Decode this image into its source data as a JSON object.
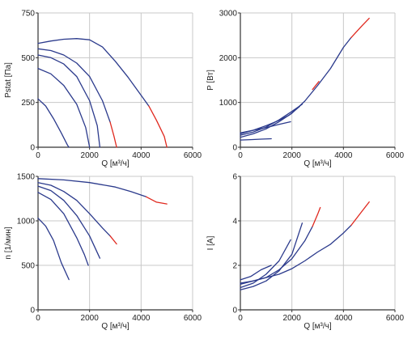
{
  "chart_data": [
    {
      "type": "line",
      "xlabel": "Q [м³/ч]",
      "ylabel": "Pstat [Па]",
      "xlim": [
        0,
        6000
      ],
      "ylim": [
        0,
        750
      ],
      "xticks": [
        "0",
        "2000",
        "4000",
        "6000"
      ],
      "yticks": [
        "0",
        "250",
        "500",
        "750"
      ],
      "grid": true,
      "series": [
        {
          "color": "#2b3a8c",
          "points": [
            [
              0,
              580
            ],
            [
              500,
              593
            ],
            [
              1000,
              603
            ],
            [
              1500,
              607
            ],
            [
              2000,
              600
            ],
            [
              2500,
              560
            ],
            [
              3000,
              480
            ],
            [
              3500,
              390
            ],
            [
              4000,
              290
            ],
            [
              4300,
              230
            ]
          ]
        },
        {
          "color": "#e0281e",
          "points": [
            [
              4300,
              230
            ],
            [
              4600,
              150
            ],
            [
              4900,
              60
            ],
            [
              5000,
              0
            ]
          ]
        },
        {
          "color": "#2b3a8c",
          "points": [
            [
              0,
              550
            ],
            [
              500,
              540
            ],
            [
              1000,
              515
            ],
            [
              1500,
              470
            ],
            [
              2000,
              395
            ],
            [
              2500,
              260
            ],
            [
              2800,
              140
            ]
          ]
        },
        {
          "color": "#e0281e",
          "points": [
            [
              2800,
              140
            ],
            [
              2950,
              60
            ],
            [
              3050,
              0
            ]
          ]
        },
        {
          "color": "#2b3a8c",
          "points": [
            [
              0,
              515
            ],
            [
              500,
              500
            ],
            [
              1000,
              465
            ],
            [
              1500,
              395
            ],
            [
              2000,
              260
            ],
            [
              2300,
              120
            ],
            [
              2400,
              0
            ]
          ]
        },
        {
          "color": "#2b3a8c",
          "points": [
            [
              0,
              440
            ],
            [
              500,
              410
            ],
            [
              1000,
              345
            ],
            [
              1500,
              240
            ],
            [
              1850,
              110
            ],
            [
              2000,
              0
            ]
          ]
        },
        {
          "color": "#2b3a8c",
          "points": [
            [
              0,
              270
            ],
            [
              300,
              230
            ],
            [
              600,
              160
            ],
            [
              900,
              80
            ],
            [
              1150,
              10
            ],
            [
              1200,
              0
            ]
          ]
        }
      ]
    },
    {
      "type": "line",
      "xlabel": "Q [м³/ч]",
      "ylabel": "P [Вт]",
      "xlim": [
        0,
        6000
      ],
      "ylim": [
        0,
        3000
      ],
      "xticks": [
        "0",
        "2000",
        "4000",
        "6000"
      ],
      "yticks": [
        "0",
        "1000",
        "2000",
        "3000"
      ],
      "grid": true,
      "series": [
        {
          "color": "#2b3a8c",
          "points": [
            [
              0,
              220
            ],
            [
              500,
              300
            ],
            [
              1000,
              410
            ],
            [
              1500,
              570
            ],
            [
              2000,
              760
            ],
            [
              2500,
              1030
            ],
            [
              3000,
              1380
            ],
            [
              3500,
              1760
            ],
            [
              4000,
              2230
            ],
            [
              4300,
              2450
            ]
          ]
        },
        {
          "color": "#e0281e",
          "points": [
            [
              4300,
              2450
            ],
            [
              4700,
              2700
            ],
            [
              5000,
              2880
            ]
          ]
        },
        {
          "color": "#e0281e",
          "points": [
            [
              2800,
              1290
            ],
            [
              3050,
              1470
            ]
          ]
        },
        {
          "color": "#2b3a8c",
          "points": [
            [
              0,
              270
            ],
            [
              500,
              340
            ],
            [
              1000,
              450
            ],
            [
              1500,
              610
            ],
            [
              2000,
              800
            ],
            [
              2400,
              960
            ]
          ]
        },
        {
          "color": "#2b3a8c",
          "points": [
            [
              0,
              300
            ],
            [
              500,
              380
            ],
            [
              1000,
              480
            ],
            [
              1500,
              600
            ],
            [
              1900,
              720
            ],
            [
              2300,
              910
            ]
          ]
        },
        {
          "color": "#2b3a8c",
          "points": [
            [
              0,
              320
            ],
            [
              500,
              380
            ],
            [
              1000,
              440
            ],
            [
              1500,
              510
            ],
            [
              1950,
              570
            ]
          ]
        },
        {
          "color": "#2b3a8c",
          "points": [
            [
              0,
              160
            ],
            [
              400,
              170
            ],
            [
              800,
              180
            ],
            [
              1200,
              190
            ]
          ]
        }
      ]
    },
    {
      "type": "line",
      "xlabel": "Q [м³/ч]",
      "ylabel": "n [1/мин]",
      "xlim": [
        0,
        6000
      ],
      "ylim": [
        0,
        1500
      ],
      "xticks": [
        "0",
        "2000",
        "4000",
        "6000"
      ],
      "yticks": [
        "0",
        "500",
        "1000",
        "1500"
      ],
      "grid": true,
      "series": [
        {
          "color": "#2b3a8c",
          "points": [
            [
              0,
              1475
            ],
            [
              1000,
              1460
            ],
            [
              2000,
              1430
            ],
            [
              3000,
              1380
            ],
            [
              3600,
              1330
            ],
            [
              4200,
              1270
            ]
          ]
        },
        {
          "color": "#e0281e",
          "points": [
            [
              4200,
              1270
            ],
            [
              4600,
              1210
            ],
            [
              5000,
              1190
            ]
          ]
        },
        {
          "color": "#2b3a8c",
          "points": [
            [
              0,
              1430
            ],
            [
              500,
              1400
            ],
            [
              1000,
              1330
            ],
            [
              1500,
              1230
            ],
            [
              2000,
              1080
            ],
            [
              2500,
              920
            ],
            [
              2800,
              830
            ]
          ]
        },
        {
          "color": "#e0281e",
          "points": [
            [
              2800,
              830
            ],
            [
              3050,
              740
            ]
          ]
        },
        {
          "color": "#2b3a8c",
          "points": [
            [
              0,
              1390
            ],
            [
              500,
              1340
            ],
            [
              1000,
              1230
            ],
            [
              1500,
              1060
            ],
            [
              2000,
              830
            ],
            [
              2400,
              580
            ]
          ]
        },
        {
          "color": "#2b3a8c",
          "points": [
            [
              0,
              1320
            ],
            [
              500,
              1240
            ],
            [
              1000,
              1080
            ],
            [
              1500,
              810
            ],
            [
              1800,
              620
            ],
            [
              1950,
              500
            ]
          ]
        },
        {
          "color": "#2b3a8c",
          "points": [
            [
              0,
              1030
            ],
            [
              300,
              940
            ],
            [
              600,
              780
            ],
            [
              900,
              530
            ],
            [
              1200,
              340
            ]
          ]
        }
      ]
    },
    {
      "type": "line",
      "xlabel": "Q [м³/ч]",
      "ylabel": "I [A]",
      "xlim": [
        0,
        6000
      ],
      "ylim": [
        0,
        6
      ],
      "xticks": [
        "0",
        "2000",
        "4000",
        "6000"
      ],
      "yticks": [
        "0",
        "2",
        "4",
        "6"
      ],
      "grid": true,
      "series": [
        {
          "color": "#2b3a8c",
          "points": [
            [
              0,
              1.15
            ],
            [
              500,
              1.3
            ],
            [
              1000,
              1.45
            ],
            [
              1500,
              1.6
            ],
            [
              2000,
              1.85
            ],
            [
              2500,
              2.2
            ],
            [
              3000,
              2.6
            ],
            [
              3500,
              2.95
            ],
            [
              4000,
              3.45
            ],
            [
              4300,
              3.8
            ]
          ]
        },
        {
          "color": "#e0281e",
          "points": [
            [
              4300,
              3.8
            ],
            [
              4700,
              4.4
            ],
            [
              5000,
              4.85
            ]
          ]
        },
        {
          "color": "#2b3a8c",
          "points": [
            [
              0,
              1.2
            ],
            [
              500,
              1.3
            ],
            [
              1000,
              1.45
            ],
            [
              1500,
              1.8
            ],
            [
              2000,
              2.3
            ],
            [
              2500,
              3.1
            ],
            [
              2800,
              3.75
            ]
          ]
        },
        {
          "color": "#e0281e",
          "points": [
            [
              2800,
              3.75
            ],
            [
              3000,
              4.3
            ],
            [
              3100,
              4.6
            ]
          ]
        },
        {
          "color": "#2b3a8c",
          "points": [
            [
              0,
              0.9
            ],
            [
              500,
              1.05
            ],
            [
              1000,
              1.3
            ],
            [
              1500,
              1.75
            ],
            [
              2000,
              2.5
            ],
            [
              2400,
              3.9
            ]
          ]
        },
        {
          "color": "#2b3a8c",
          "points": [
            [
              0,
              1.0
            ],
            [
              500,
              1.2
            ],
            [
              1000,
              1.6
            ],
            [
              1500,
              2.2
            ],
            [
              1950,
              3.15
            ]
          ]
        },
        {
          "color": "#2b3a8c",
          "points": [
            [
              0,
              1.35
            ],
            [
              400,
              1.5
            ],
            [
              800,
              1.8
            ],
            [
              1200,
              2.0
            ]
          ]
        }
      ]
    }
  ]
}
